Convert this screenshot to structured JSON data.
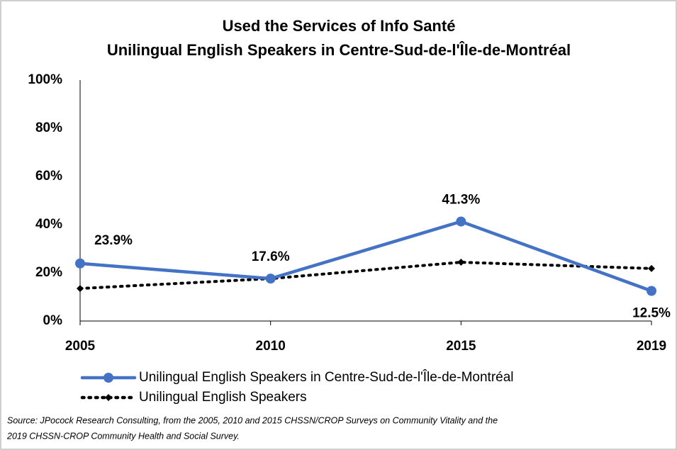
{
  "chart_data": {
    "type": "line",
    "title": [
      "Used the Services of Info Santé",
      "Unilingual English Speakers in Centre-Sud-de-l'Île-de-Montréal"
    ],
    "categories": [
      "2005",
      "2010",
      "2015",
      "2019"
    ],
    "series": [
      {
        "name": "Unilingual English Speakers in Centre-Sud-de-l'Île-de-Montréal",
        "color": "#4472c4",
        "style": "solid",
        "values": [
          23.9,
          17.6,
          41.3,
          12.5
        ],
        "value_labels": [
          "23.9%",
          "17.6%",
          "41.3%",
          "12.5%"
        ]
      },
      {
        "name": "Unilingual English Speakers",
        "color": "#000000",
        "style": "dotted",
        "values": [
          13.5,
          17.6,
          24.4,
          21.8
        ]
      }
    ],
    "ylim": [
      0,
      100
    ],
    "yticks": [
      {
        "value": 0,
        "label": "0%"
      },
      {
        "value": 20,
        "label": "20%"
      },
      {
        "value": 40,
        "label": "40%"
      },
      {
        "value": 60,
        "label": "60%"
      },
      {
        "value": 80,
        "label": "80%"
      },
      {
        "value": 100,
        "label": "100%"
      }
    ],
    "legend": "bottom",
    "source": [
      "Source: JPocock Research Consulting, from the 2005, 2010  and 2015  CHSSN/CROP Surveys on Community Vitality and the",
      "2019  CHSSN-CROP Community Health and Social Survey."
    ]
  }
}
